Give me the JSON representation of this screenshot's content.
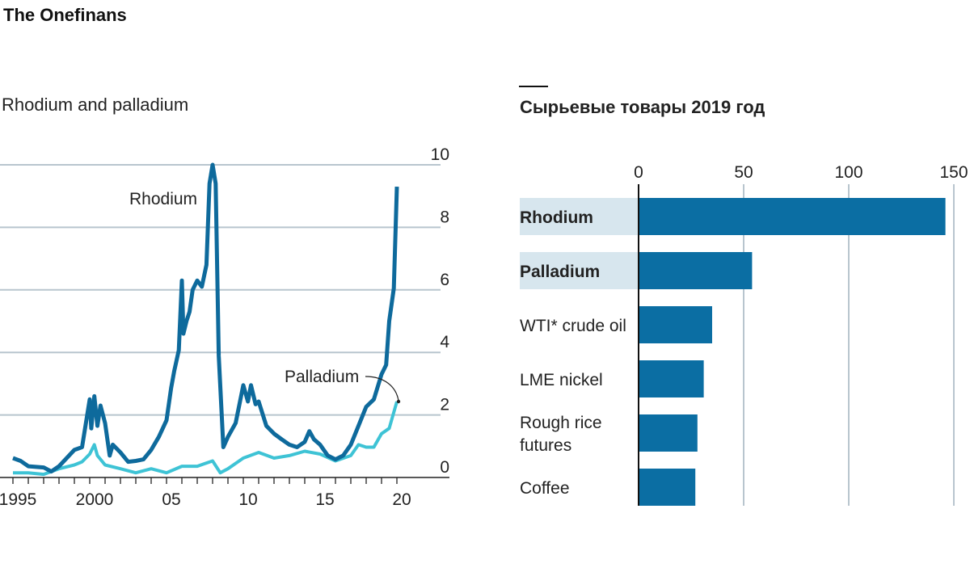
{
  "brand": "The Onefinans",
  "chart_data": [
    {
      "type": "line",
      "title": "Rhodium and palladium",
      "xlabel": "",
      "ylabel": "",
      "xlim": [
        1994.2,
        2023
      ],
      "ylim": [
        0,
        10
      ],
      "x_ticks": [
        1995,
        1996,
        1997,
        1998,
        1999,
        2000,
        2001,
        2002,
        2003,
        2004,
        2005,
        2006,
        2007,
        2008,
        2009,
        2010,
        2011,
        2012,
        2013,
        2014,
        2015,
        2016,
        2017,
        2018,
        2019,
        2020
      ],
      "x_tick_labels": [
        {
          "x": 1995,
          "label": "1995"
        },
        {
          "x": 2000,
          "label": "2000"
        },
        {
          "x": 2005,
          "label": "05"
        },
        {
          "x": 2010,
          "label": "10"
        },
        {
          "x": 2015,
          "label": "15"
        },
        {
          "x": 2020,
          "label": "20"
        }
      ],
      "y_ticks": [
        0,
        2,
        4,
        6,
        8,
        10
      ],
      "grid": true,
      "colors": {
        "rhodium": "#0e6a9c",
        "palladium": "#3ec3d5",
        "grid": "#b8c5ce"
      },
      "series": [
        {
          "name": "Rhodium",
          "x": [
            1995,
            1995.5,
            1996,
            1997,
            1997.5,
            1998,
            1998.5,
            1999,
            1999.5,
            2000,
            2000.1,
            2000.3,
            2000.5,
            2000.7,
            2001,
            2001.3,
            2001.5,
            2002,
            2002.5,
            2003,
            2003.5,
            2004,
            2004.5,
            2005,
            2005.3,
            2005.5,
            2005.8,
            2006,
            2006.1,
            2006.3,
            2006.5,
            2006.7,
            2007,
            2007.3,
            2007.6,
            2007.8,
            2008,
            2008.2,
            2008.4,
            2008.7,
            2009,
            2009.5,
            2010,
            2010.3,
            2010.5,
            2010.8,
            2011,
            2011.5,
            2012,
            2012.5,
            2013,
            2013.5,
            2014,
            2014.3,
            2014.6,
            2015,
            2015.5,
            2016,
            2016.5,
            2017,
            2017.5,
            2018,
            2018.5,
            2019,
            2019.3,
            2019.5,
            2019.8,
            2020
          ],
          "y": [
            0.62,
            0.53,
            0.36,
            0.32,
            0.19,
            0.36,
            0.62,
            0.88,
            0.97,
            2.5,
            1.57,
            2.6,
            1.65,
            2.3,
            1.74,
            0.7,
            1.05,
            0.8,
            0.5,
            0.53,
            0.58,
            0.88,
            1.3,
            1.83,
            2.86,
            3.4,
            4.07,
            6.3,
            4.6,
            5.0,
            5.3,
            6.0,
            6.3,
            6.1,
            6.8,
            9.4,
            10.0,
            9.4,
            3.9,
            0.97,
            1.3,
            1.74,
            2.95,
            2.43,
            2.95,
            2.34,
            2.43,
            1.65,
            1.4,
            1.22,
            1.05,
            0.97,
            1.14,
            1.48,
            1.22,
            1.05,
            0.7,
            0.58,
            0.7,
            1.05,
            1.65,
            2.26,
            2.5,
            3.3,
            3.6,
            5.0,
            6.05,
            9.3
          ]
        },
        {
          "name": "Palladium",
          "x": [
            1995,
            1996,
            1997,
            1998,
            1999,
            1999.5,
            2000,
            2000.3,
            2000.5,
            2001,
            2002,
            2003,
            2004,
            2005,
            2006,
            2007,
            2008,
            2008.5,
            2009,
            2010,
            2011,
            2012,
            2013,
            2014,
            2015,
            2016,
            2017,
            2017.5,
            2018,
            2018.5,
            2019,
            2019.5,
            2020
          ],
          "y": [
            0.15,
            0.15,
            0.1,
            0.28,
            0.4,
            0.5,
            0.75,
            1.05,
            0.7,
            0.4,
            0.28,
            0.15,
            0.28,
            0.15,
            0.36,
            0.36,
            0.53,
            0.15,
            0.28,
            0.62,
            0.8,
            0.62,
            0.7,
            0.84,
            0.75,
            0.53,
            0.7,
            1.05,
            0.97,
            0.97,
            1.4,
            1.57,
            2.43
          ]
        }
      ]
    },
    {
      "type": "bar",
      "orientation": "horizontal",
      "title": "Сырьевые товары 2019 год",
      "xlabel": "",
      "ylabel": "",
      "xlim": [
        0,
        150
      ],
      "x_ticks": [
        0,
        50,
        100,
        150
      ],
      "grid": true,
      "colors": {
        "bar": "#0b6ea3",
        "highlight": "#d7e6ee",
        "grid": "#b8c5ce"
      },
      "categories": [
        {
          "label": [
            "Rhodium"
          ],
          "highlight": true
        },
        {
          "label": [
            "Palladium"
          ],
          "highlight": true
        },
        {
          "label": [
            "WTI* crude oil"
          ],
          "highlight": false
        },
        {
          "label": [
            "LME nickel"
          ],
          "highlight": false
        },
        {
          "label": [
            "Rough rice",
            "futures"
          ],
          "highlight": false
        },
        {
          "label": [
            "Coffee"
          ],
          "highlight": false
        }
      ],
      "values": [
        146,
        54,
        35,
        31,
        28,
        27
      ]
    }
  ]
}
